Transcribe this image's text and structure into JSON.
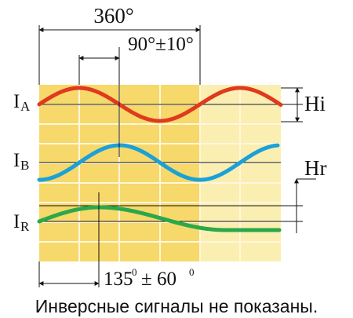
{
  "colors": {
    "grid_fill_main": "#f7d86a",
    "grid_fill_light": "#fbeeb1",
    "grid_line": "#fff7dc",
    "ia_wave": "#e03a1e",
    "ib_wave": "#1aa1d8",
    "ir_wave": "#2aa84a",
    "axis": "#111111"
  },
  "labels": {
    "period_360": "360°",
    "phase_90": "90°±10°",
    "phase_135_main": "135",
    "phase_135_sup": "0",
    "phase_135_tail": "± 60",
    "phase_135_sup2": "0",
    "hi": "Hi",
    "hr": "Hr",
    "ia_main": "I",
    "ia_sub": "A",
    "ib_main": "I",
    "ib_sub": "B",
    "ir_main": "I",
    "ir_sub": "R",
    "caption": "Инверсные сигналы не показаны."
  },
  "signals": [
    {
      "name": "IA",
      "color_key": "ia_wave"
    },
    {
      "name": "IB",
      "color_key": "ib_wave"
    },
    {
      "name": "IR",
      "color_key": "ir_wave"
    }
  ]
}
